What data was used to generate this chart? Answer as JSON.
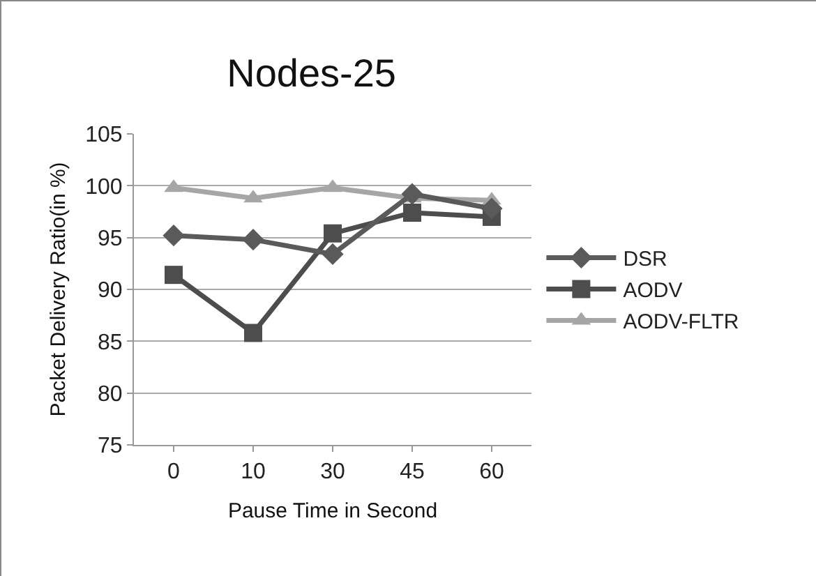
{
  "chart_data": {
    "type": "line",
    "title": "Nodes-25",
    "xlabel": "Pause Time in Second",
    "ylabel": "Packet Delivery Ratio(in %)",
    "categories": [
      "0",
      "10",
      "30",
      "45",
      "60"
    ],
    "series": [
      {
        "name": "DSR",
        "color": "#5a5a5a",
        "marker": "diamond",
        "values": [
          95.2,
          94.8,
          93.4,
          99.2,
          97.8
        ]
      },
      {
        "name": "AODV",
        "color": "#4d4d4d",
        "marker": "square",
        "values": [
          91.4,
          85.8,
          95.4,
          97.4,
          97.0
        ]
      },
      {
        "name": "AODV-FLTR",
        "color": "#a6a6a6",
        "marker": "triangle",
        "values": [
          99.8,
          98.8,
          99.8,
          98.8,
          98.6
        ]
      }
    ],
    "ylim": [
      75,
      105
    ],
    "yticks": [
      75,
      80,
      85,
      90,
      95,
      100,
      105
    ],
    "grid": "y",
    "legend": "right"
  }
}
